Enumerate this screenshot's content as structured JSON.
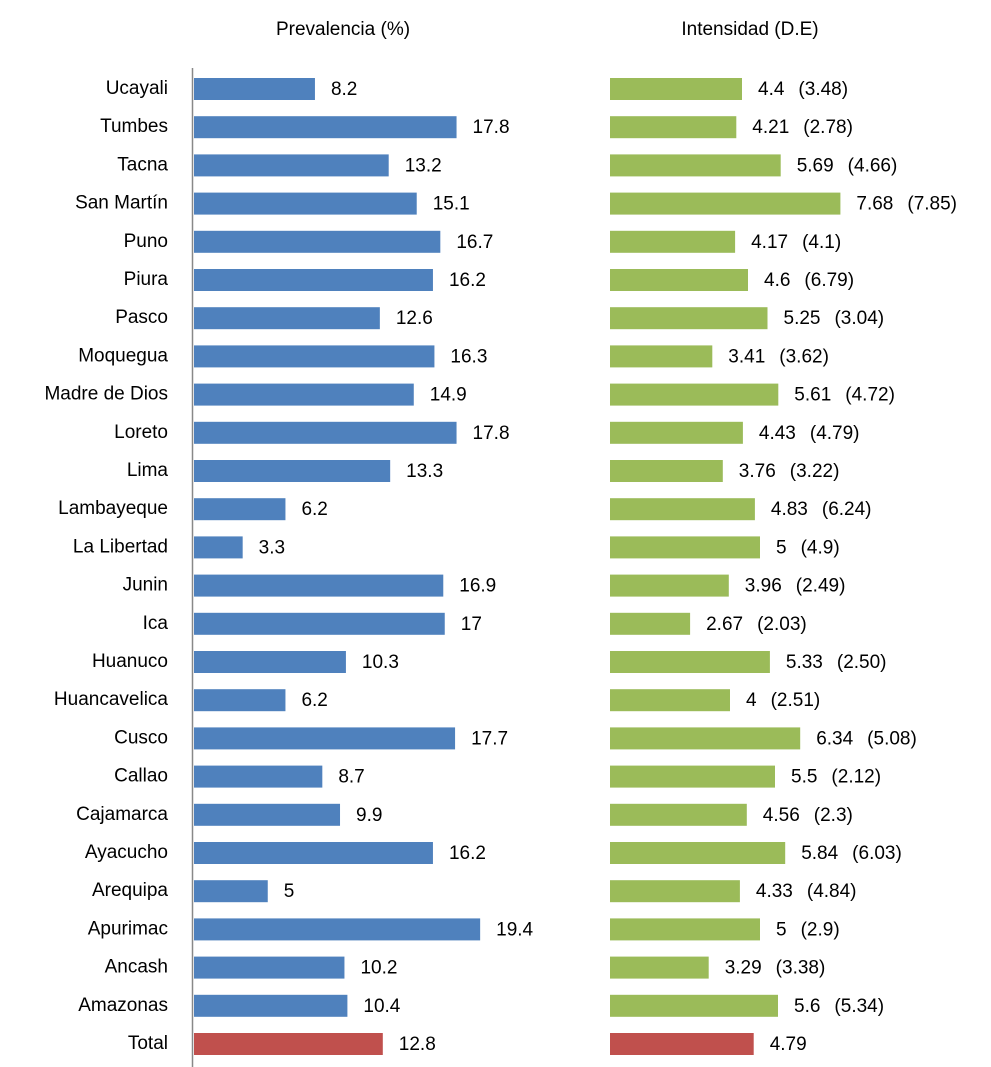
{
  "chart_data": [
    {
      "type": "bar",
      "orientation": "horizontal",
      "title": "Prevalencia (%)",
      "categories": [
        "Ucayali",
        "Tumbes",
        "Tacna",
        "San  Martín",
        "Puno",
        "Piura",
        "Pasco",
        "Moquegua",
        "Madre de Dios",
        "Loreto",
        "Lima",
        "Lambayeque",
        "La Libertad",
        "Junin",
        "Ica",
        "Huanuco",
        "Huancavelica",
        "Cusco",
        "Callao",
        "Cajamarca",
        "Ayacucho",
        "Arequipa",
        "Apurimac",
        "Ancash",
        "Amazonas",
        "Total"
      ],
      "values": [
        8.2,
        17.8,
        13.2,
        15.1,
        16.7,
        16.2,
        12.6,
        16.3,
        14.9,
        17.8,
        13.3,
        6.2,
        3.3,
        16.9,
        17,
        10.3,
        6.2,
        17.7,
        8.7,
        9.9,
        16.2,
        5,
        19.4,
        10.2,
        10.4,
        12.8
      ],
      "colors": [
        "#4f81bd",
        "#4f81bd",
        "#4f81bd",
        "#4f81bd",
        "#4f81bd",
        "#4f81bd",
        "#4f81bd",
        "#4f81bd",
        "#4f81bd",
        "#4f81bd",
        "#4f81bd",
        "#4f81bd",
        "#4f81bd",
        "#4f81bd",
        "#4f81bd",
        "#4f81bd",
        "#4f81bd",
        "#4f81bd",
        "#4f81bd",
        "#4f81bd",
        "#4f81bd",
        "#4f81bd",
        "#4f81bd",
        "#4f81bd",
        "#4f81bd",
        "#c0504d"
      ],
      "xlim": [
        0,
        20
      ],
      "axis_line": true
    },
    {
      "type": "bar",
      "orientation": "horizontal",
      "title": "Intensidad (D.E)",
      "values": [
        4.4,
        4.21,
        5.69,
        7.68,
        4.17,
        4.6,
        5.25,
        3.41,
        5.61,
        4.43,
        3.76,
        4.83,
        5,
        3.96,
        2.67,
        5.33,
        4,
        6.34,
        5.5,
        4.56,
        5.84,
        4.33,
        5,
        3.29,
        5.6,
        4.79
      ],
      "sd_labels": [
        "(3.48)",
        "(2.78)",
        "(4.66)",
        "(7.85)",
        "(4.1)",
        "(6.79)",
        "(3.04)",
        "(3.62)",
        "(4.72)",
        "(4.79)",
        "(3.22)",
        "(6.24)",
        "(4.9)",
        "(2.49)",
        "(2.03)",
        "(2.50)",
        "(2.51)",
        "(5.08)",
        "(2.12)",
        "(2.3)",
        "(6.03)",
        "(4.84)",
        "(2.9)",
        "(3.38)",
        "(5.34)",
        null
      ],
      "colors": [
        "#9bbb59",
        "#9bbb59",
        "#9bbb59",
        "#9bbb59",
        "#9bbb59",
        "#9bbb59",
        "#9bbb59",
        "#9bbb59",
        "#9bbb59",
        "#9bbb59",
        "#9bbb59",
        "#9bbb59",
        "#9bbb59",
        "#9bbb59",
        "#9bbb59",
        "#9bbb59",
        "#9bbb59",
        "#9bbb59",
        "#9bbb59",
        "#9bbb59",
        "#9bbb59",
        "#9bbb59",
        "#9bbb59",
        "#9bbb59",
        "#9bbb59",
        "#c0504d"
      ],
      "xlim": [
        0,
        8
      ],
      "axis_line": false
    }
  ]
}
